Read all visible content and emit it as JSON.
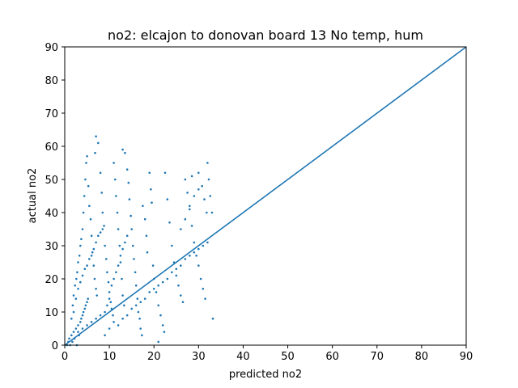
{
  "chart_data": {
    "type": "scatter",
    "title": "no2: elcajon to donovan board 13 No temp, hum",
    "xlabel": "predicted no2",
    "ylabel": "actual no2",
    "xlim": [
      0,
      90
    ],
    "ylim": [
      0,
      90
    ],
    "xticks": [
      "0",
      "10",
      "20",
      "30",
      "40",
      "50",
      "60",
      "70",
      "80",
      "90"
    ],
    "yticks": [
      "0",
      "10",
      "20",
      "30",
      "40",
      "50",
      "60",
      "70",
      "80",
      "90"
    ],
    "grid": false,
    "legend": "none",
    "color": "#1f77b4",
    "reference_line": {
      "x": [
        0,
        90
      ],
      "y": [
        0,
        90
      ]
    },
    "points": [
      [
        0.5,
        0
      ],
      [
        0.8,
        1
      ],
      [
        1.0,
        2
      ],
      [
        1.2,
        0
      ],
      [
        1.5,
        3
      ],
      [
        1.7,
        1
      ],
      [
        2.0,
        4
      ],
      [
        2.2,
        2
      ],
      [
        2.5,
        5
      ],
      [
        2.7,
        0
      ],
      [
        3.0,
        6
      ],
      [
        3.2,
        3
      ],
      [
        3.5,
        7
      ],
      [
        3.7,
        8
      ],
      [
        4.0,
        9
      ],
      [
        4.2,
        10
      ],
      [
        4.5,
        11
      ],
      [
        4.7,
        12
      ],
      [
        5.0,
        13
      ],
      [
        5.2,
        14
      ],
      [
        1.5,
        8
      ],
      [
        1.8,
        12
      ],
      [
        2.0,
        15
      ],
      [
        2.3,
        18
      ],
      [
        2.6,
        20
      ],
      [
        2.8,
        22
      ],
      [
        3.0,
        25
      ],
      [
        3.3,
        27
      ],
      [
        3.5,
        30
      ],
      [
        3.7,
        32
      ],
      [
        4.0,
        35
      ],
      [
        4.2,
        40
      ],
      [
        4.4,
        45
      ],
      [
        4.6,
        50
      ],
      [
        4.8,
        55
      ],
      [
        5.0,
        57
      ],
      [
        5.3,
        48
      ],
      [
        5.5,
        42
      ],
      [
        5.8,
        38
      ],
      [
        6.0,
        33
      ],
      [
        6.2,
        28
      ],
      [
        6.5,
        24
      ],
      [
        6.7,
        20
      ],
      [
        7.0,
        17
      ],
      [
        7.2,
        15
      ],
      [
        7.5,
        61
      ],
      [
        7.0,
        63
      ],
      [
        6.8,
        58
      ],
      [
        8.0,
        52
      ],
      [
        8.3,
        46
      ],
      [
        8.5,
        40
      ],
      [
        8.8,
        36
      ],
      [
        9.0,
        30
      ],
      [
        9.3,
        26
      ],
      [
        9.5,
        22
      ],
      [
        9.8,
        19
      ],
      [
        10.0,
        16
      ],
      [
        10.3,
        13
      ],
      [
        10.5,
        11
      ],
      [
        10.8,
        9
      ],
      [
        11.0,
        55
      ],
      [
        11.3,
        50
      ],
      [
        11.5,
        45
      ],
      [
        11.8,
        40
      ],
      [
        12.0,
        35
      ],
      [
        12.3,
        30
      ],
      [
        12.5,
        25
      ],
      [
        12.8,
        20
      ],
      [
        13.0,
        15
      ],
      [
        13.3,
        12
      ],
      [
        13.0,
        59
      ],
      [
        13.5,
        58
      ],
      [
        14.0,
        53
      ],
      [
        14.3,
        49
      ],
      [
        14.5,
        44
      ],
      [
        14.8,
        39
      ],
      [
        15.0,
        35
      ],
      [
        15.3,
        30
      ],
      [
        15.5,
        26
      ],
      [
        15.8,
        22
      ],
      [
        16.0,
        18
      ],
      [
        16.3,
        14
      ],
      [
        16.5,
        10
      ],
      [
        16.8,
        8
      ],
      [
        17.0,
        5
      ],
      [
        17.3,
        3
      ],
      [
        17.5,
        42
      ],
      [
        18.0,
        38
      ],
      [
        18.3,
        33
      ],
      [
        18.5,
        28
      ],
      [
        19.0,
        52
      ],
      [
        19.3,
        47
      ],
      [
        19.5,
        43
      ],
      [
        19.8,
        24
      ],
      [
        20.0,
        20
      ],
      [
        20.5,
        16
      ],
      [
        21.0,
        12
      ],
      [
        21.5,
        9
      ],
      [
        22.0,
        6
      ],
      [
        22.3,
        4
      ],
      [
        21.0,
        1
      ],
      [
        22.5,
        52
      ],
      [
        23.0,
        44
      ],
      [
        23.5,
        37
      ],
      [
        24.0,
        30
      ],
      [
        24.5,
        25
      ],
      [
        25.0,
        21
      ],
      [
        25.5,
        18
      ],
      [
        26.0,
        15
      ],
      [
        26.5,
        13
      ],
      [
        27.0,
        50
      ],
      [
        27.5,
        46
      ],
      [
        28.0,
        41
      ],
      [
        28.5,
        36
      ],
      [
        29.0,
        31
      ],
      [
        29.5,
        27
      ],
      [
        30.0,
        24
      ],
      [
        30.5,
        20
      ],
      [
        31.0,
        17
      ],
      [
        31.5,
        14
      ],
      [
        28.5,
        51
      ],
      [
        30.0,
        52
      ],
      [
        30.8,
        48
      ],
      [
        31.3,
        44
      ],
      [
        31.8,
        40
      ],
      [
        32.0,
        55
      ],
      [
        32.3,
        50
      ],
      [
        32.6,
        45
      ],
      [
        33.0,
        40
      ],
      [
        33.2,
        8
      ],
      [
        2.0,
        10
      ],
      [
        2.5,
        14
      ],
      [
        3.0,
        17
      ],
      [
        3.5,
        19
      ],
      [
        4.0,
        21
      ],
      [
        4.5,
        23
      ],
      [
        5.0,
        24
      ],
      [
        5.5,
        26
      ],
      [
        6.0,
        27
      ],
      [
        6.5,
        29
      ],
      [
        7.0,
        31
      ],
      [
        7.5,
        33
      ],
      [
        8.0,
        34
      ],
      [
        8.5,
        35
      ],
      [
        9.0,
        10
      ],
      [
        9.5,
        12
      ],
      [
        10.0,
        14
      ],
      [
        10.5,
        18
      ],
      [
        11.0,
        20
      ],
      [
        11.5,
        22
      ],
      [
        12.0,
        24
      ],
      [
        12.5,
        27
      ],
      [
        13.0,
        29
      ],
      [
        13.5,
        31
      ],
      [
        14.0,
        33
      ],
      [
        3.0,
        4
      ],
      [
        4.0,
        5
      ],
      [
        5.0,
        6
      ],
      [
        6.0,
        7
      ],
      [
        7.0,
        8
      ],
      [
        8.0,
        9
      ],
      [
        9.0,
        3
      ],
      [
        10.0,
        5
      ],
      [
        11.0,
        7
      ],
      [
        12.0,
        6
      ],
      [
        13.0,
        8
      ],
      [
        14.0,
        9
      ],
      [
        15.0,
        11
      ],
      [
        16.0,
        12
      ],
      [
        17.0,
        13
      ],
      [
        18.0,
        14
      ],
      [
        19.0,
        16
      ],
      [
        20.0,
        17
      ],
      [
        21.0,
        18
      ],
      [
        22.0,
        19
      ],
      [
        23.0,
        20
      ],
      [
        24.0,
        22
      ],
      [
        25.0,
        23
      ],
      [
        26.0,
        24
      ],
      [
        27.0,
        26
      ],
      [
        28.0,
        27
      ],
      [
        29.0,
        28
      ],
      [
        30.0,
        29
      ],
      [
        31.0,
        30
      ],
      [
        32.0,
        31
      ],
      [
        26.0,
        35
      ],
      [
        27.0,
        38
      ],
      [
        28.0,
        42
      ],
      [
        29.0,
        45
      ],
      [
        30.0,
        47
      ]
    ]
  }
}
